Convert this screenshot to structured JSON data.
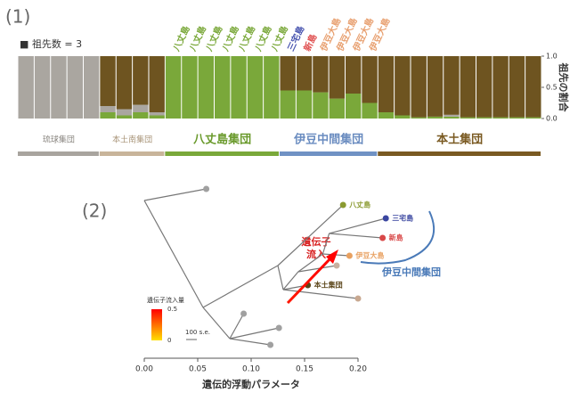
{
  "panel_labels": [
    "(1)",
    "(2)"
  ],
  "chart_data": [
    {
      "type": "bar",
      "stacked": true,
      "annotation": "■ 祖先数 = 3",
      "ylabel": "祖先の割合",
      "ylim": [
        0,
        1
      ],
      "yticks": [
        {
          "value": 0,
          "label": "0.0"
        },
        0.5,
        {
          "value": 1,
          "label": "1.0"
        }
      ],
      "categories": [
        null,
        null,
        null,
        null,
        null,
        null,
        null,
        null,
        null,
        "八丈島",
        "八丈島",
        "八丈島",
        "八丈島",
        "八丈島",
        "八丈島",
        "八丈島",
        "三宅島",
        "新島",
        "伊豆大島",
        "伊豆大島",
        "伊豆大島",
        "伊豆大島",
        null,
        null,
        null,
        null,
        null,
        null,
        null,
        null,
        null,
        null
      ],
      "category_label_colors": [
        null,
        null,
        null,
        null,
        null,
        null,
        null,
        null,
        null,
        "#7aa83a",
        "#7aa83a",
        "#7aa83a",
        "#7aa83a",
        "#7aa83a",
        "#7aa83a",
        "#7aa83a",
        "#4a56b0",
        "#e05050",
        "#e8a070",
        "#e8a070",
        "#e8a070",
        "#e8a070",
        null,
        null,
        null,
        null,
        null,
        null,
        null,
        null,
        null,
        null
      ],
      "series": [
        {
          "color": "#7aa83a",
          "values": [
            0,
            0,
            0,
            0,
            0,
            0.1,
            0.05,
            0.1,
            0.05,
            1,
            1,
            1,
            1,
            1,
            1,
            1,
            0.45,
            0.45,
            0.42,
            0.32,
            0.4,
            0.25,
            0.1,
            0.05,
            0.02,
            0.03,
            0.03,
            0.02,
            0.02,
            0.02,
            0.02,
            0.02
          ]
        },
        {
          "color": "#aaa6a0",
          "values": [
            1,
            1,
            1,
            1,
            1,
            0.1,
            0.1,
            0.12,
            0.05,
            0,
            0,
            0,
            0,
            0,
            0,
            0,
            0,
            0,
            0,
            0,
            0,
            0,
            0,
            0,
            0,
            0,
            0.03,
            0,
            0,
            0,
            0,
            0
          ]
        },
        {
          "color": "#6e5420",
          "values": [
            0,
            0,
            0,
            0,
            0,
            0.8,
            0.85,
            0.78,
            0.9,
            0,
            0,
            0,
            0,
            0,
            0,
            0,
            0.55,
            0.55,
            0.58,
            0.68,
            0.6,
            0.75,
            0.9,
            0.95,
            0.98,
            0.97,
            0.94,
            0.98,
            0.98,
            0.98,
            0.98,
            0.98
          ]
        }
      ],
      "groups": [
        {
          "name": "琉球集団",
          "size": 5,
          "color": "#a8a49e",
          "text_color": "#8a8680",
          "emphasis": false
        },
        {
          "name": "本土南集団",
          "size": 4,
          "color": "#c8b49a",
          "text_color": "#a89478",
          "emphasis": false
        },
        {
          "name": "八丈島集団",
          "size": 7,
          "color": "#7aa83a",
          "text_color": "#6a9a2c",
          "emphasis": true
        },
        {
          "name": "伊豆中間集団",
          "size": 6,
          "color": "#7092c4",
          "text_color": "#6a8cc0",
          "emphasis": true
        },
        {
          "name": "本土集団",
          "size": 10,
          "color": "#7a5a22",
          "text_color": "#7a5a22",
          "emphasis": true
        }
      ]
    },
    {
      "type": "tree",
      "xlabel": "遺伝的浮動パラメータ",
      "xlim": [
        0,
        0.2
      ],
      "xticks": [
        {
          "value": 0,
          "label": "0.00"
        },
        {
          "value": 0.05,
          "label": "0.05"
        },
        {
          "value": 0.1,
          "label": "0.10"
        },
        {
          "value": 0.15,
          "label": "0.15"
        },
        {
          "value": 0.2,
          "label": "0.20"
        }
      ],
      "nodes": [
        {
          "x": 0
        },
        {
          "x": 0.058,
          "color": "#a0a0a0"
        },
        {
          "x": 0.055
        },
        {
          "x": 0.08
        },
        {
          "x": 0.093,
          "color": "#a0a0a0"
        },
        {
          "x": 0.126,
          "color": "#a0a0a0"
        },
        {
          "x": 0.118,
          "color": "#a0a0a0"
        },
        {
          "x": 0.125
        },
        {
          "x": 0.186,
          "label": "八丈島",
          "color": "#8a9a30"
        },
        {
          "x": 0.13
        },
        {
          "x": 0.153,
          "label": "本土集団",
          "color": "#5a4418"
        },
        {
          "x": 0.2,
          "color": "#c8a890"
        },
        {
          "x": 0.144
        },
        {
          "x": 0.18,
          "color": "#c8b0a0"
        },
        {
          "x": 0.167
        },
        {
          "x": 0.192,
          "label": "伊豆大島",
          "color": "#e8a060"
        },
        {
          "x": 0.173
        },
        {
          "x": 0.226,
          "label": "三宅島",
          "color": "#3a46a0"
        },
        {
          "x": 0.223,
          "label": "新島",
          "color": "#d84848"
        }
      ],
      "migrations": [
        {
          "value": 0.45
        }
      ],
      "migration_annotation": [
        "遺伝子",
        "流入"
      ],
      "migration_legend": {
        "title": "遺伝子流入量",
        "ticks": [
          0,
          0.5
        ],
        "colors": [
          "#ffe000",
          "#ff0000"
        ]
      },
      "scale_label": "100 s.e.",
      "group_label": "伊豆中間集団",
      "group_color": "#4a7ab8"
    }
  ]
}
